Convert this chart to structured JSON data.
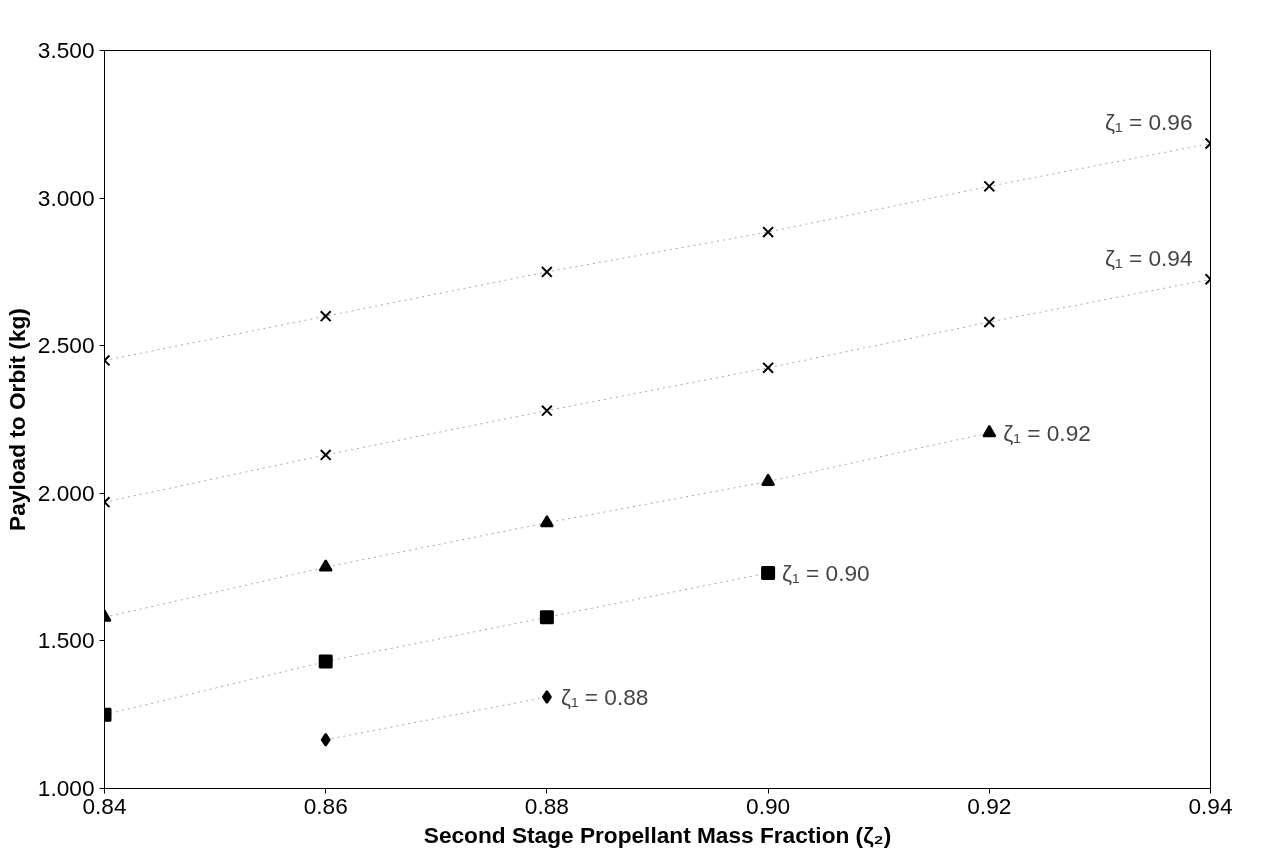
{
  "chart_data": {
    "type": "scatter",
    "xlabel": "Second Stage Propellant Mass Fraction (ζ₂)",
    "ylabel": "Payload to Orbit (kg)",
    "x": [
      0.84,
      0.86,
      0.88,
      0.9,
      0.92,
      0.94
    ],
    "series": [
      {
        "name": "ζ₁ = 0.96",
        "color": "#000000",
        "marker": "cross",
        "values": [
          2.45,
          2.6,
          2.75,
          2.885,
          3.04,
          3.185
        ]
      },
      {
        "name": "ζ₁ = 0.94",
        "color": "#000000",
        "marker": "cross",
        "values": [
          1.97,
          2.13,
          2.28,
          2.425,
          2.58,
          2.725
        ]
      },
      {
        "name": "ζ₁ = 0.92",
        "color": "#000000",
        "marker": "triangle",
        "values": [
          1.58,
          1.75,
          1.9,
          2.04,
          2.205,
          null
        ]
      },
      {
        "name": "ζ₁ = 0.90",
        "color": "#000000",
        "marker": "square",
        "values": [
          1.25,
          1.43,
          1.58,
          1.73,
          null,
          null
        ]
      },
      {
        "name": "ζ₁ = 0.88",
        "color": "#000000",
        "marker": "diamond",
        "values": [
          null,
          1.165,
          1.31,
          null,
          null,
          null
        ]
      }
    ],
    "line_style": "dotted",
    "xlim": [
      0.84,
      0.94
    ],
    "ylim": [
      1,
      3.5
    ],
    "xticks": [
      0.84,
      0.86,
      0.88,
      {
        "value": 0.9,
        "label": "0.90"
      },
      0.92,
      0.94
    ],
    "yticks": [
      {
        "value": 1,
        "label": "1.000"
      },
      {
        "value": 1.5,
        "label": "1.500"
      },
      {
        "value": 2,
        "label": "2.000"
      },
      {
        "value": 2.5,
        "label": "2.500"
      },
      {
        "value": 3,
        "label": "3.000"
      },
      {
        "value": 3.5,
        "label": "3.500"
      }
    ],
    "grid": false
  }
}
